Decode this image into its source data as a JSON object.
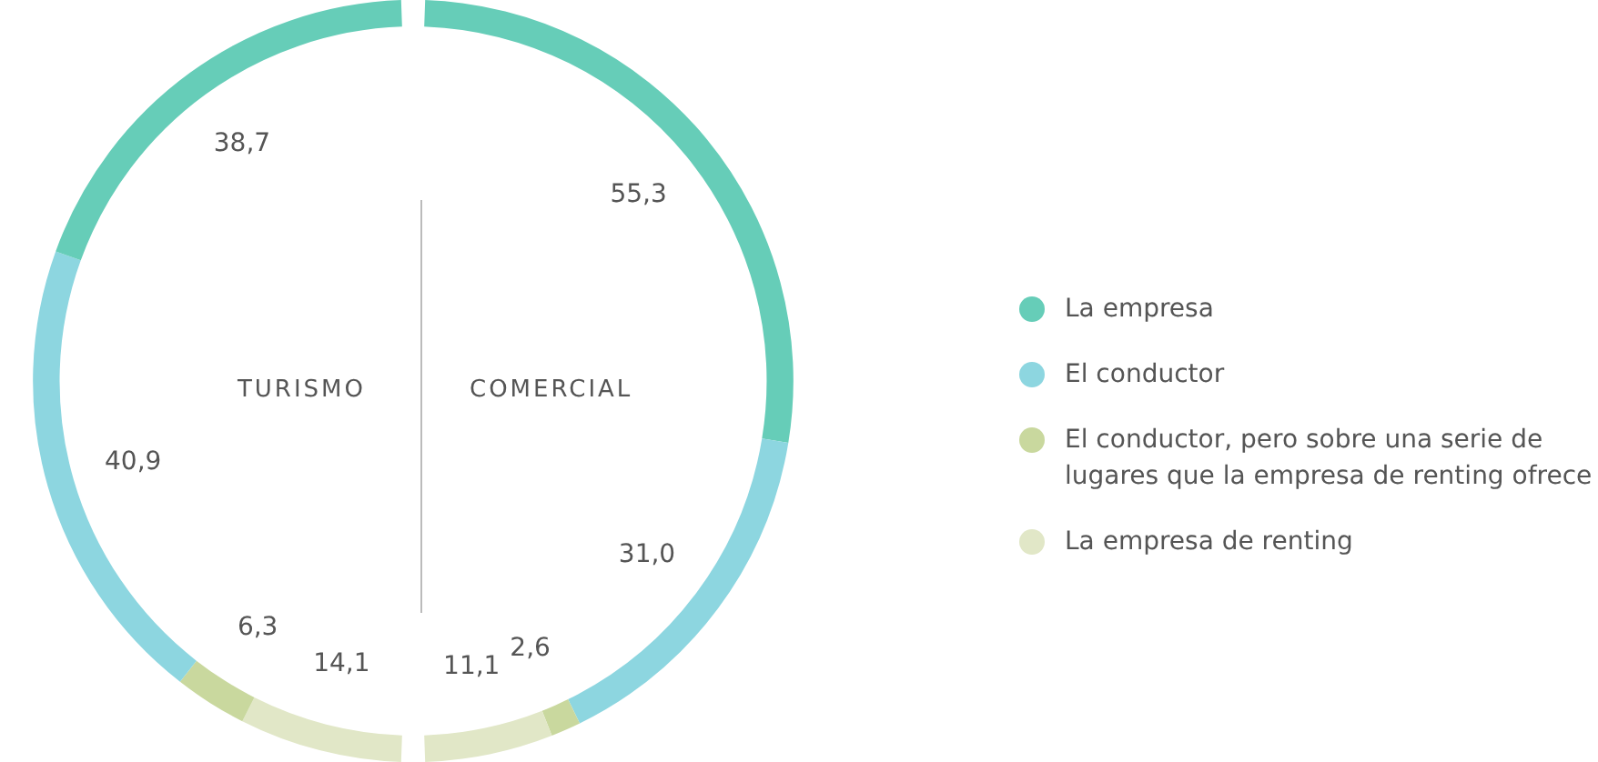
{
  "chart_data": [
    {
      "type": "donut",
      "title": "TURISMO",
      "categories": [
        "La empresa",
        "El conductor",
        "El conductor, pero sobre una serie de lugares que la empresa de renting ofrece",
        "La empresa de renting"
      ],
      "values": [
        38.7,
        40.9,
        6.3,
        14.1
      ],
      "value_labels": [
        "38,7",
        "40,9",
        "6,3",
        "14,1"
      ],
      "colors": [
        "#66cdb8",
        "#8dd6e0",
        "#c9d89e",
        "#e1e7c7"
      ],
      "legend": "right"
    },
    {
      "type": "donut",
      "title": "COMERCIAL",
      "categories": [
        null,
        null,
        null,
        null
      ],
      "values": [
        55.3,
        31.0,
        2.6,
        11.1
      ],
      "value_labels": [
        "55,3",
        "31,0",
        "2,6",
        "11,1"
      ],
      "colors": [
        "#66cdb8",
        "#8dd6e0",
        "#c9d89e",
        "#e1e7c7"
      ]
    }
  ]
}
